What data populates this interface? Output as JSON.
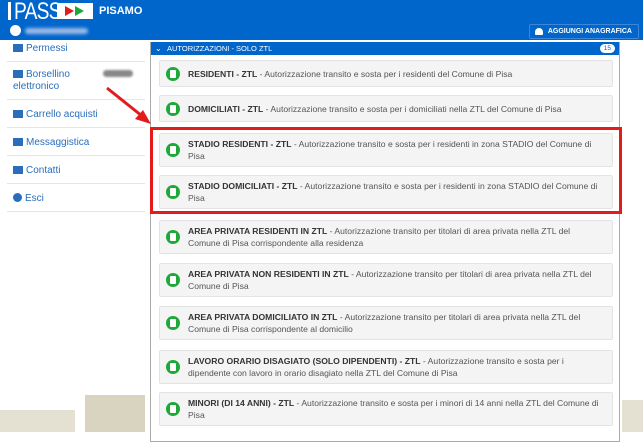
{
  "header": {
    "logo": "PASS",
    "app_name": "PISAMO",
    "add_button": "AGGIUNGI ANAGRAFICA"
  },
  "sidebar": {
    "items": [
      {
        "label": "Permessi",
        "icon": "folder-open-icon"
      },
      {
        "label": "Borsellino elettronico",
        "icon": "wallet-icon"
      },
      {
        "label": "Carrello acquisti",
        "icon": "cart-icon"
      },
      {
        "label": "Messaggistica",
        "icon": "reply-all-icon"
      },
      {
        "label": "Contatti",
        "icon": "envelope-icon"
      },
      {
        "label": "Esci",
        "icon": "power-icon"
      }
    ]
  },
  "panel": {
    "title": "AUTORIZZAZIONI - SOLO ZTL",
    "count": "15",
    "items": [
      {
        "title": "RESIDENTI - ZTL",
        "desc": " - Autorizzazione transito e sosta per i residenti del Comune di Pisa"
      },
      {
        "title": "DOMICILIATI - ZTL",
        "desc": " - Autorizzazione transito e sosta per i domiciliati nella ZTL del Comune di Pisa"
      },
      {
        "title": "STADIO RESIDENTI - ZTL",
        "desc": " - Autorizzazione transito e sosta per i residenti in zona STADIO del Comune di Pisa"
      },
      {
        "title": "STADIO DOMICILIATI - ZTL",
        "desc": " - Autorizzazione transito e sosta per i residenti in zona STADIO del Comune di Pisa"
      },
      {
        "title": "AREA PRIVATA RESIDENTI IN ZTL",
        "desc": " - Autorizzazione transito per titolari di area privata nella ZTL del Comune di Pisa corrispondente alla residenza"
      },
      {
        "title": "AREA PRIVATA NON RESIDENTI IN ZTL",
        "desc": " - Autorizzazione transito per titolari di area privata nella ZTL del Comune di Pisa"
      },
      {
        "title": "AREA PRIVATA DOMICILIATO IN ZTL",
        "desc": " - Autorizzazione transito per titolari di area privata nella ZTL del Comune di Pisa corrispondente al domicilio"
      },
      {
        "title": "LAVORO ORARIO DISAGIATO (SOLO DIPENDENTI) - ZTL",
        "desc": " - Autorizzazione transito e sosta per i dipendente con lavoro in orario disagiato nella ZTL del Comune di Pisa"
      },
      {
        "title": "MINORI (DI 14 ANNI) - ZTL",
        "desc": " - Autorizzazione transito e sosta per i minori di 14 anni nella ZTL del Comune di Pisa"
      }
    ]
  },
  "colors": {
    "brand": "#0066cc",
    "highlight": "#e31b1b",
    "icon": "#1fa83a"
  }
}
